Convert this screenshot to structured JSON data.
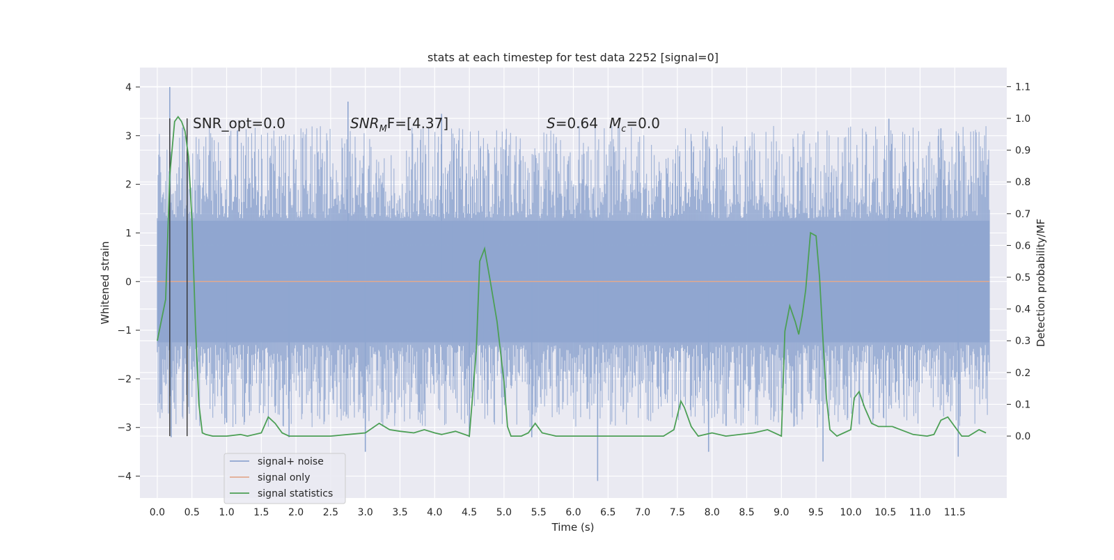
{
  "chart_data": {
    "type": "line",
    "title": "stats at each timestep for test data 2252 [signal=0]",
    "xlabel": "Time (s)",
    "ylabel_left": "Whitened strain",
    "ylabel_right": "Detection probability/MF",
    "x_ticks": [
      "0.0",
      "0.5",
      "1.0",
      "1.5",
      "2.0",
      "2.5",
      "3.0",
      "3.5",
      "4.0",
      "4.5",
      "5.0",
      "5.5",
      "6.0",
      "6.5",
      "7.0",
      "7.5",
      "8.0",
      "8.5",
      "9.0",
      "9.5",
      "10.0",
      "10.5",
      "11.0",
      "11.5"
    ],
    "y_left_ticks": [
      "−4",
      "−3",
      "−2",
      "−1",
      "0",
      "1",
      "2",
      "3",
      "4"
    ],
    "y_right_ticks": [
      "0.0",
      "0.1",
      "0.2",
      "0.3",
      "0.4",
      "0.5",
      "0.6",
      "0.7",
      "0.8",
      "0.9",
      "1.0",
      "1.1"
    ],
    "xlim": [
      -0.25,
      12.25
    ],
    "ylim_left": [
      -4.45,
      4.4
    ],
    "ylim_right": [
      -0.195,
      1.16
    ],
    "grid": true,
    "legend_position": "lower-left",
    "annotations": {
      "snr_opt": "SNR_opt=0.0",
      "snr_mf_main": "SNR",
      "snr_mf_sub": "M",
      "snr_mf_rest": "F=[4.37]",
      "s_label": "S",
      "s_value": "=0.64",
      "mc_main": "M",
      "mc_sub": "c",
      "mc_value": "=0.0"
    },
    "series": [
      {
        "name": "signal+ noise",
        "color": "#8fa6d0",
        "axis": "left",
        "x_range": [
          0.0,
          12.0
        ],
        "envelope_approx": [
          -3.0,
          3.2
        ],
        "spikes": [
          [
            0.18,
            4.0
          ],
          [
            0.2,
            -3.2
          ],
          [
            1.0,
            -2.9
          ],
          [
            1.9,
            -3.2
          ],
          [
            2.75,
            3.7
          ],
          [
            3.0,
            -3.5
          ],
          [
            4.1,
            3.45
          ],
          [
            4.5,
            -3.2
          ],
          [
            5.4,
            -3.2
          ],
          [
            6.35,
            -4.1
          ],
          [
            7.95,
            -3.5
          ],
          [
            9.6,
            -3.7
          ],
          [
            10.55,
            3.35
          ],
          [
            11.3,
            3.15
          ],
          [
            11.55,
            -3.6
          ]
        ]
      },
      {
        "name": "signal only",
        "color": "#e1a98f",
        "axis": "left",
        "values_constant": 0.0
      },
      {
        "name": "signal statistics",
        "color": "#4c9f55",
        "axis": "right",
        "x": [
          0.0,
          0.12,
          0.18,
          0.25,
          0.3,
          0.35,
          0.4,
          0.45,
          0.5,
          0.55,
          0.6,
          0.65,
          0.7,
          0.8,
          1.0,
          1.2,
          1.3,
          1.5,
          1.6,
          1.7,
          1.8,
          1.9,
          2.0,
          2.5,
          3.0,
          3.2,
          3.35,
          3.5,
          3.7,
          3.85,
          4.0,
          4.1,
          4.3,
          4.5,
          4.6,
          4.65,
          4.72,
          4.8,
          4.9,
          5.0,
          5.05,
          5.1,
          5.25,
          5.35,
          5.45,
          5.55,
          5.75,
          6.0,
          6.5,
          7.0,
          7.3,
          7.45,
          7.55,
          7.6,
          7.7,
          7.8,
          8.0,
          8.2,
          8.6,
          8.8,
          9.0,
          9.05,
          9.12,
          9.2,
          9.25,
          9.3,
          9.35,
          9.42,
          9.5,
          9.55,
          9.6,
          9.65,
          9.7,
          9.8,
          9.9,
          10.0,
          10.05,
          10.12,
          10.2,
          10.3,
          10.4,
          10.6,
          10.9,
          11.1,
          11.2,
          11.3,
          11.4,
          11.6,
          11.7,
          11.85,
          11.95
        ],
        "y": [
          0.3,
          0.43,
          0.82,
          0.99,
          1.005,
          0.99,
          0.96,
          0.88,
          0.68,
          0.35,
          0.1,
          0.01,
          0.005,
          0.0,
          0.0,
          0.005,
          0.0,
          0.01,
          0.06,
          0.04,
          0.01,
          0.0,
          0.0,
          0.0,
          0.01,
          0.04,
          0.02,
          0.015,
          0.01,
          0.02,
          0.01,
          0.005,
          0.015,
          0.0,
          0.27,
          0.55,
          0.59,
          0.49,
          0.36,
          0.17,
          0.03,
          0.0,
          0.0,
          0.01,
          0.04,
          0.01,
          0.0,
          0.0,
          0.0,
          0.0,
          0.0,
          0.02,
          0.11,
          0.09,
          0.03,
          0.0,
          0.01,
          0.0,
          0.01,
          0.02,
          0.0,
          0.33,
          0.41,
          0.36,
          0.32,
          0.38,
          0.46,
          0.64,
          0.63,
          0.5,
          0.3,
          0.12,
          0.02,
          0.0,
          0.01,
          0.02,
          0.12,
          0.14,
          0.09,
          0.04,
          0.03,
          0.03,
          0.005,
          0.0,
          0.005,
          0.05,
          0.06,
          0.0,
          0.0,
          0.02,
          0.01
        ]
      }
    ],
    "vertical_markers_x": [
      0.18,
      0.43
    ]
  }
}
